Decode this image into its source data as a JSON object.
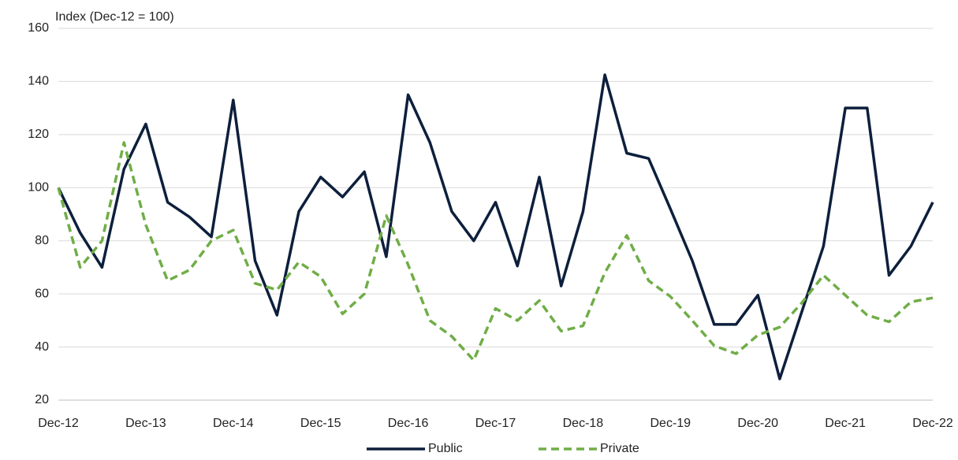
{
  "chart_data": {
    "type": "line",
    "y_axis_label": "Index (Dec-12 = 100)",
    "categories": [
      "Dec-12",
      null,
      null,
      null,
      "Dec-13",
      null,
      null,
      null,
      "Dec-14",
      null,
      null,
      null,
      "Dec-15",
      null,
      null,
      null,
      "Dec-16",
      null,
      null,
      null,
      "Dec-17",
      null,
      null,
      null,
      "Dec-18",
      null,
      null,
      null,
      "Dec-19",
      null,
      null,
      null,
      "Dec-20",
      null,
      null,
      null,
      "Dec-21",
      null,
      null,
      null,
      "Dec-22"
    ],
    "series": [
      {
        "name": "Public",
        "color": "#0d1f3c",
        "dash": false,
        "values": [
          100,
          83,
          70,
          107,
          124,
          94.5,
          89,
          81.5,
          133,
          72.5,
          52,
          91,
          104,
          96.5,
          106,
          74,
          135,
          117,
          91,
          80,
          94.5,
          70.5,
          104,
          63,
          91,
          142.5,
          113,
          111,
          92,
          72.5,
          48.5,
          48.5,
          59.5,
          28,
          53,
          78,
          130,
          130,
          67,
          78,
          94.5
        ]
      },
      {
        "name": "Private",
        "color": "#70ad47",
        "dash": true,
        "values": [
          100,
          70,
          80,
          117,
          86,
          65,
          69,
          80,
          84,
          64,
          61.5,
          72,
          66.5,
          52.5,
          60,
          89.5,
          71,
          50,
          44,
          35,
          54.5,
          50,
          57.5,
          46,
          48,
          68,
          82,
          65,
          59,
          50,
          40.5,
          37.5,
          44.5,
          47.5,
          56.5,
          67,
          59.5,
          52,
          49.5,
          57,
          58.5
        ]
      }
    ],
    "ylim": [
      20,
      160
    ],
    "yticks": [
      20,
      40,
      60,
      80,
      100,
      120,
      140,
      160
    ],
    "grid": true,
    "legend": "bottom"
  }
}
